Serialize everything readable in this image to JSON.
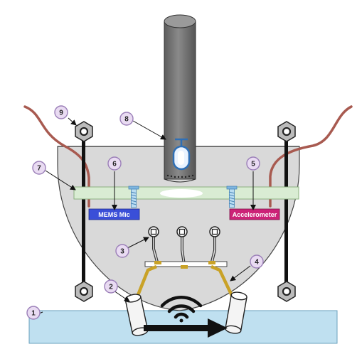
{
  "labels": {
    "mems_mic": "MEMS Mic",
    "accelerometer": "Accelerometer"
  },
  "callouts": {
    "c1": "1",
    "c2": "2",
    "c3": "3",
    "c4": "4",
    "c5": "5",
    "c6": "6",
    "c7": "7",
    "c8": "8",
    "c9": "9"
  },
  "colors": {
    "housing_fill": "#d9d9d9",
    "surface_fill": "#bfe0f0",
    "pcb_fill": "#d9ecd3",
    "rod_fill": "#707070",
    "cable": "#a85a50",
    "callout_fill": "#e9dbf2",
    "callout_stroke": "#9b7fb8",
    "mic_tag": "#3a4fd8",
    "accel_tag": "#cc2277",
    "arm_gold": "#c9a227"
  },
  "icons": {
    "wave": "wireless-signal-icon",
    "arrow": "right-arrow-icon",
    "droplet": "droplet-icon",
    "screw": "screw-icon",
    "nut": "hex-nut-icon"
  }
}
